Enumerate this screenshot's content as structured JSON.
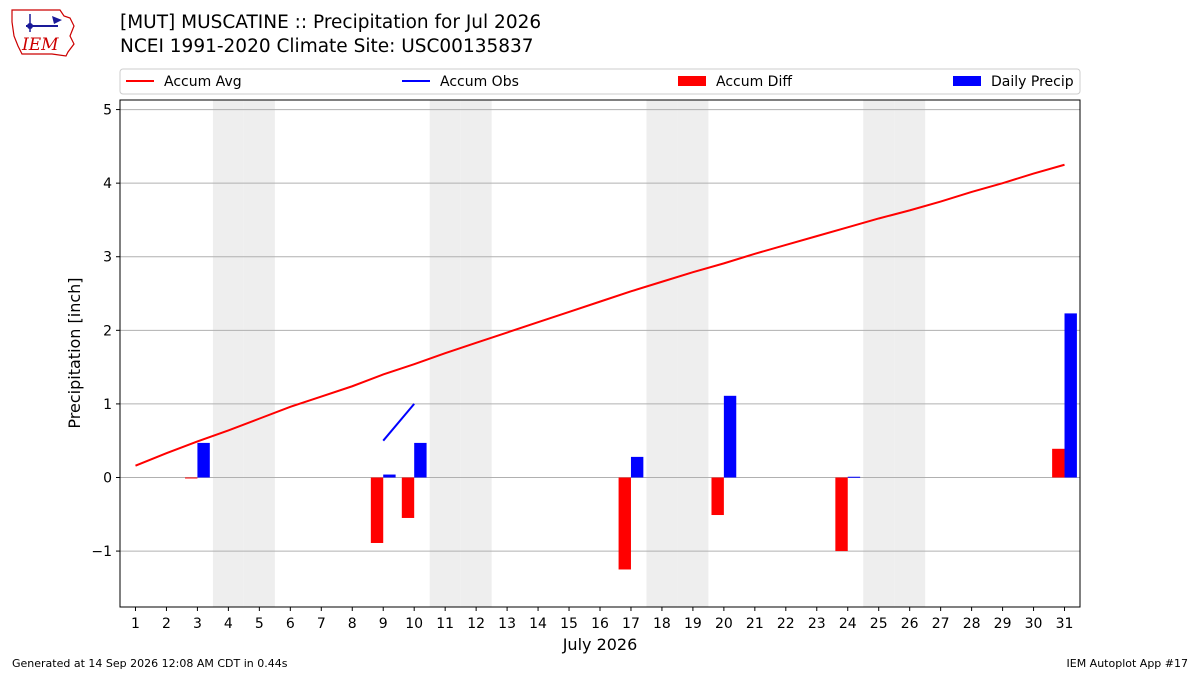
{
  "header": {
    "title_line1": "[MUT] MUSCATINE :: Precipitation for Jul 2026",
    "title_line2": "NCEI 1991-2020 Climate Site: USC00135837"
  },
  "logo": {
    "text": "IEM"
  },
  "footer": {
    "left": "Generated at 14 Sep 2026 12:08 AM CDT in 0.44s",
    "right": "IEM Autoplot App #17"
  },
  "colors": {
    "accum_avg": "#ff0000",
    "accum_obs": "#0000ff",
    "accum_diff": "#ff0000",
    "daily_precip": "#0000ff",
    "weekend_shade": "#eeeeee",
    "grid": "#b0b0b0"
  },
  "chart_data": {
    "type": "bar",
    "xlabel": "July 2026",
    "ylabel": "Precipitation [inch]",
    "xlim": [
      0.5,
      31.5
    ],
    "ylim": [
      -1.76,
      5.13
    ],
    "yticks": [
      -1,
      0,
      1,
      2,
      3,
      4,
      5
    ],
    "ytick_labels": [
      "−1",
      "0",
      "1",
      "2",
      "3",
      "4",
      "5"
    ],
    "days": [
      1,
      2,
      3,
      4,
      5,
      6,
      7,
      8,
      9,
      10,
      11,
      12,
      13,
      14,
      15,
      16,
      17,
      18,
      19,
      20,
      21,
      22,
      23,
      24,
      25,
      26,
      27,
      28,
      29,
      30,
      31
    ],
    "weekend_days": [
      4,
      5,
      11,
      12,
      18,
      19,
      25,
      26
    ],
    "grid": true,
    "legend_position": "top",
    "legend": [
      "Accum Avg",
      "Accum Obs",
      "Accum Diff",
      "Daily Precip"
    ],
    "series": [
      {
        "name": "Accum Avg",
        "kind": "line",
        "x": [
          1,
          2,
          3,
          4,
          5,
          6,
          7,
          8,
          9,
          10,
          11,
          12,
          13,
          14,
          15,
          16,
          17,
          18,
          19,
          20,
          21,
          22,
          23,
          24,
          25,
          26,
          27,
          28,
          29,
          30,
          31
        ],
        "values": [
          0.16,
          0.33,
          0.49,
          0.64,
          0.8,
          0.96,
          1.1,
          1.24,
          1.4,
          1.54,
          1.69,
          1.83,
          1.97,
          2.11,
          2.25,
          2.39,
          2.53,
          2.66,
          2.79,
          2.91,
          3.04,
          3.16,
          3.28,
          3.4,
          3.52,
          3.63,
          3.75,
          3.88,
          4.0,
          4.13,
          4.25
        ]
      },
      {
        "name": "Accum Obs",
        "kind": "line",
        "x": [
          9,
          10
        ],
        "values": [
          0.5,
          1.0
        ]
      },
      {
        "name": "Accum Diff",
        "kind": "bar",
        "x": [
          3,
          9,
          10,
          17,
          20,
          24,
          31
        ],
        "values": [
          -0.01,
          -0.89,
          -0.55,
          -1.25,
          -0.51,
          -1.0,
          0.39
        ]
      },
      {
        "name": "Daily Precip",
        "kind": "bar",
        "x": [
          3,
          9,
          10,
          17,
          20,
          24,
          31
        ],
        "values": [
          0.47,
          0.04,
          0.47,
          0.28,
          1.11,
          0.01,
          2.23
        ]
      }
    ]
  }
}
